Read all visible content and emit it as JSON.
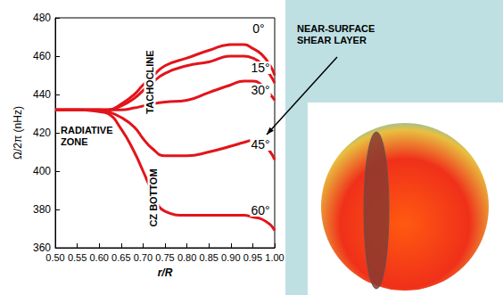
{
  "chart_data": {
    "type": "line",
    "x_label": "r/R",
    "y_label": "Ω/2π (nHz)",
    "x": [
      0.5,
      0.55,
      0.6,
      0.62,
      0.65,
      0.68,
      0.7,
      0.72,
      0.75,
      0.8,
      0.85,
      0.9,
      0.93,
      0.95,
      0.97,
      0.99,
      1.0
    ],
    "series": [
      {
        "name": "0°",
        "color": "#e3141b",
        "values": [
          432,
          432,
          432,
          432,
          435,
          440,
          445,
          449,
          455,
          459,
          463,
          466,
          466,
          464,
          461,
          455,
          450
        ]
      },
      {
        "name": "15°",
        "color": "#e3141b",
        "values": [
          432,
          432,
          432,
          432,
          434,
          438,
          442,
          446,
          451,
          455,
          457,
          460,
          460,
          459,
          456,
          450,
          446
        ]
      },
      {
        "name": "30°",
        "color": "#e3141b",
        "values": [
          432,
          432,
          432,
          432,
          432,
          433,
          434,
          435,
          436,
          437,
          441,
          445,
          447,
          447,
          445,
          440,
          437
        ]
      },
      {
        "name": "45°",
        "color": "#e3141b",
        "values": [
          432,
          432,
          432,
          431,
          428,
          423,
          417,
          412,
          408,
          408,
          410,
          413,
          415,
          416,
          415,
          410,
          406
        ]
      },
      {
        "name": "60°",
        "color": "#e3141b",
        "values": [
          432,
          432,
          431,
          430,
          422,
          410,
          400,
          390,
          379,
          377,
          377,
          377,
          377,
          376,
          375,
          372,
          369
        ]
      }
    ],
    "xlim": [
      0.5,
      1.0
    ],
    "ylim": [
      360,
      480
    ],
    "xticks": [
      {
        "value": 0.5,
        "label": "0.50"
      },
      {
        "value": 0.55,
        "label": "0.55"
      },
      {
        "value": 0.6,
        "label": "0.60"
      },
      {
        "value": 0.65,
        "label": "0.65"
      },
      {
        "value": 0.7,
        "label": "0.70"
      },
      {
        "value": 0.75,
        "label": "0.75"
      },
      {
        "value": 0.8,
        "label": "0.80"
      },
      {
        "value": 0.85,
        "label": "0.85"
      },
      {
        "value": 0.9,
        "label": "0.90"
      },
      {
        "value": 0.95,
        "label": "0.95"
      },
      {
        "value": 1.0,
        "label": "1.00"
      }
    ],
    "yticks": [
      360,
      380,
      400,
      420,
      440,
      460,
      480
    ],
    "grid": false,
    "annotations": [
      "RADIATIVE ZONE",
      "TACHOCLINE",
      "CZ BOTTOM",
      "NEAR-SURFACE SHEAR LAYER"
    ]
  }
}
